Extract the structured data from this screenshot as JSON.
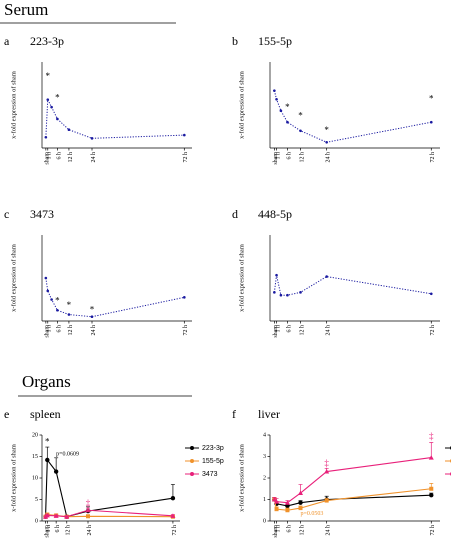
{
  "sections": [
    "Serum",
    "Organs"
  ],
  "chart_data": [
    {
      "type": "line",
      "letter": "a",
      "title": "223-3p",
      "y_label": "x-fold expression of sham",
      "x": [
        0,
        1,
        3,
        6,
        12,
        24,
        72
      ],
      "xlim": [
        -2,
        76
      ],
      "xticks": [
        {
          "value": 0,
          "label": "sham"
        },
        {
          "value": 1,
          "label": "1 h"
        },
        {
          "value": 6,
          "label": "6 h"
        },
        {
          "value": 12,
          "label": "12 h"
        },
        {
          "value": 24,
          "label": "24 h"
        },
        {
          "value": 72,
          "label": "72 h"
        }
      ],
      "ylim": [
        0,
        8
      ],
      "series": [
        {
          "color": "#1a1aa0",
          "line_style": "dotted",
          "values": [
            1,
            4.5,
            3.8,
            2.7,
            1.7,
            0.9,
            1.2
          ]
        }
      ],
      "annotations": [
        {
          "text": "*",
          "x": 1,
          "y": 6.6
        },
        {
          "text": "*",
          "x": 6,
          "y": 4.6
        }
      ]
    },
    {
      "type": "line",
      "letter": "b",
      "title": "155-5p",
      "y_label": "x-fold expression of sham",
      "x": [
        0,
        1,
        3,
        6,
        12,
        24,
        72
      ],
      "xlim": [
        -2,
        76
      ],
      "xticks": [
        {
          "value": 0,
          "label": "sham"
        },
        {
          "value": 1,
          "label": "1 h"
        },
        {
          "value": 6,
          "label": "6 h"
        },
        {
          "value": 12,
          "label": "12 h"
        },
        {
          "value": 24,
          "label": "24 h"
        },
        {
          "value": 72,
          "label": "72 h"
        }
      ],
      "ylim": [
        0,
        1.5
      ],
      "series": [
        {
          "color": "#1a1aa0",
          "line_style": "dotted",
          "values": [
            1,
            0.85,
            0.65,
            0.45,
            0.3,
            0.1,
            0.45
          ]
        }
      ],
      "annotations": [
        {
          "text": "*",
          "x": 6,
          "y": 0.7
        },
        {
          "text": "*",
          "x": 12,
          "y": 0.55
        },
        {
          "text": "*",
          "x": 24,
          "y": 0.3
        },
        {
          "text": "*",
          "x": 72,
          "y": 0.85
        }
      ]
    },
    {
      "type": "line",
      "letter": "c",
      "title": "3473",
      "y_label": "x-fold expression of sham",
      "x": [
        0,
        1,
        3,
        6,
        12,
        24,
        72
      ],
      "xlim": [
        -2,
        76
      ],
      "xticks": [
        {
          "value": 0,
          "label": "sham"
        },
        {
          "value": 1,
          "label": "1 h"
        },
        {
          "value": 6,
          "label": "6 h"
        },
        {
          "value": 12,
          "label": "12 h"
        },
        {
          "value": 24,
          "label": "24 h"
        },
        {
          "value": 72,
          "label": "72 h"
        }
      ],
      "ylim": [
        0,
        2
      ],
      "series": [
        {
          "color": "#1a1aa0",
          "line_style": "dotted",
          "values": [
            1,
            0.7,
            0.5,
            0.25,
            0.15,
            0.1,
            0.55
          ]
        }
      ],
      "annotations": [
        {
          "text": "*",
          "x": 6,
          "y": 0.45
        },
        {
          "text": "*",
          "x": 12,
          "y": 0.35
        },
        {
          "text": "*",
          "x": 24,
          "y": 0.25
        }
      ]
    },
    {
      "type": "line",
      "letter": "d",
      "title": "448-5p",
      "y_label": "x-fold expression of sham",
      "x": [
        0,
        1,
        3,
        6,
        12,
        24,
        72
      ],
      "xlim": [
        -2,
        76
      ],
      "xticks": [
        {
          "value": 0,
          "label": "sham"
        },
        {
          "value": 1,
          "label": "1 h"
        },
        {
          "value": 6,
          "label": "6 h"
        },
        {
          "value": 12,
          "label": "12 h"
        },
        {
          "value": 24,
          "label": "24 h"
        },
        {
          "value": 72,
          "label": "72 h"
        }
      ],
      "ylim": [
        0,
        3
      ],
      "series": [
        {
          "color": "#1a1aa0",
          "line_style": "dotted",
          "values": [
            1,
            1.6,
            0.9,
            0.9,
            1.0,
            1.55,
            0.95
          ]
        }
      ],
      "annotations": []
    },
    {
      "type": "line",
      "letter": "e",
      "title": "spleen",
      "y_label": "x-fold expression of sham",
      "x": [
        0,
        1,
        6,
        12,
        24,
        72
      ],
      "xlim": [
        -2,
        76
      ],
      "xticks": [
        {
          "value": 0,
          "label": "sham"
        },
        {
          "value": 1,
          "label": "1 h"
        },
        {
          "value": 6,
          "label": "6 h"
        },
        {
          "value": 12,
          "label": "12 h"
        },
        {
          "value": 24,
          "label": "24 h"
        },
        {
          "value": 72,
          "label": "72 h"
        }
      ],
      "ylim": [
        0,
        20
      ],
      "yticks": [
        0,
        5,
        10,
        15,
        20
      ],
      "series": [
        {
          "name": "223-3p",
          "color": "#000000",
          "marker": "circle",
          "values": [
            1,
            14.2,
            11.5,
            1,
            2.3,
            5.3
          ],
          "errors": [
            0.3,
            3,
            3.2,
            0.3,
            1,
            3.2
          ]
        },
        {
          "name": "155-5p",
          "color": "#f0922b",
          "marker": "square",
          "values": [
            1,
            1.5,
            1.3,
            1,
            1.1,
            1
          ],
          "errors": [
            0.2,
            0.3,
            0.2,
            0.2,
            0.2,
            0.2
          ]
        },
        {
          "name": "3473",
          "color": "#e8207a",
          "marker": "triangle",
          "values": [
            1,
            1.3,
            1.2,
            1,
            2.5,
            1.2
          ],
          "errors": [
            0.2,
            0.3,
            0.2,
            0.2,
            0.5,
            0.3
          ]
        }
      ],
      "annotations": [
        {
          "text": "*",
          "x": 1,
          "y": 18.3,
          "color": "#000000"
        },
        {
          "text": "p=0.0609",
          "x": 6,
          "y": 15.5,
          "color": "#000000"
        },
        {
          "text": "‡",
          "x": 24,
          "y": 4,
          "color": "#e8207a"
        }
      ]
    },
    {
      "type": "line",
      "letter": "f",
      "title": "liver",
      "y_label": "x-fold expression of sham",
      "x": [
        0,
        1,
        6,
        12,
        24,
        72
      ],
      "xlim": [
        -2,
        76
      ],
      "xticks": [
        {
          "value": 0,
          "label": "sham"
        },
        {
          "value": 1,
          "label": "1 h"
        },
        {
          "value": 6,
          "label": "6 h"
        },
        {
          "value": 12,
          "label": "12 h"
        },
        {
          "value": 24,
          "label": "24 h"
        },
        {
          "value": 72,
          "label": "72 h"
        }
      ],
      "ylim": [
        0,
        4
      ],
      "yticks": [
        0,
        1,
        2,
        3,
        4
      ],
      "series": [
        {
          "name": "223-3p",
          "color": "#000000",
          "marker": "circle",
          "values": [
            1,
            0.8,
            0.7,
            0.85,
            1,
            1.2
          ],
          "errors": [
            0.1,
            0.1,
            0.1,
            0.1,
            0.15,
            0.1
          ]
        },
        {
          "name": "155-5p",
          "color": "#f0922b",
          "marker": "square",
          "values": [
            1,
            0.55,
            0.5,
            0.6,
            0.95,
            1.5
          ],
          "errors": [
            0.1,
            0.1,
            0.1,
            0.1,
            0.1,
            0.25
          ]
        },
        {
          "name": "3473",
          "color": "#e8207a",
          "marker": "triangle",
          "values": [
            1,
            0.9,
            0.85,
            1.3,
            2.3,
            2.95
          ],
          "errors": [
            0.1,
            0.15,
            0.1,
            0.4,
            0.15,
            0.7
          ]
        }
      ],
      "annotations": [
        {
          "text": "‡",
          "x": 24,
          "y": 2.65,
          "color": "#e8207a"
        },
        {
          "text": "‡",
          "x": 72,
          "y": 3.9,
          "color": "#e8207a"
        },
        {
          "text": "p=0.0503",
          "x": 12,
          "y": 0.35,
          "color": "#f0922b"
        }
      ]
    }
  ]
}
